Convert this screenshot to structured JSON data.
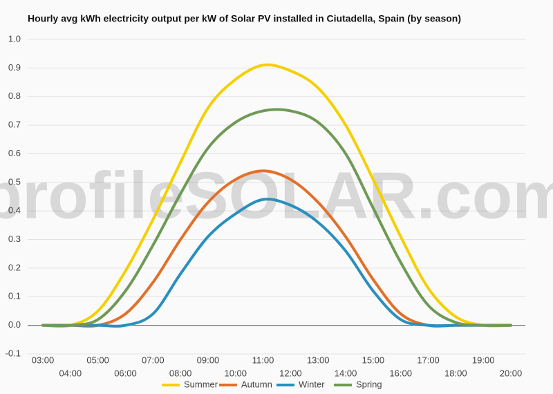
{
  "chart_data": {
    "type": "line",
    "title": "Hourly avg kWh electricity output per kW of Solar PV installed in Ciutadella, Spain (by season)",
    "watermark": "profileSOLAR.com",
    "categories": [
      "03:00",
      "04:00",
      "05:00",
      "06:00",
      "07:00",
      "08:00",
      "09:00",
      "10:00",
      "11:00",
      "12:00",
      "13:00",
      "14:00",
      "15:00",
      "16:00",
      "17:00",
      "18:00",
      "19:00",
      "20:00"
    ],
    "series": [
      {
        "name": "Summer",
        "color": "#f5d000",
        "values": [
          0,
          0,
          0.05,
          0.19,
          0.37,
          0.57,
          0.76,
          0.86,
          0.91,
          0.89,
          0.83,
          0.7,
          0.51,
          0.31,
          0.13,
          0.03,
          0,
          0
        ]
      },
      {
        "name": "Autumn",
        "color": "#e2702a",
        "values": [
          0,
          0,
          0,
          0.04,
          0.15,
          0.3,
          0.43,
          0.51,
          0.54,
          0.51,
          0.43,
          0.31,
          0.16,
          0.04,
          0,
          0,
          0,
          0
        ]
      },
      {
        "name": "Winter",
        "color": "#2a8fbd",
        "values": [
          0,
          0,
          0,
          0,
          0.04,
          0.18,
          0.31,
          0.39,
          0.44,
          0.42,
          0.36,
          0.26,
          0.12,
          0.02,
          0,
          0,
          0,
          0
        ]
      },
      {
        "name": "Spring",
        "color": "#6f9a55",
        "values": [
          0,
          0,
          0.02,
          0.12,
          0.28,
          0.46,
          0.62,
          0.71,
          0.75,
          0.75,
          0.71,
          0.6,
          0.41,
          0.22,
          0.07,
          0.01,
          0,
          0
        ]
      }
    ],
    "ylim": [
      -0.1,
      1.0
    ],
    "yticks": [
      -0.1,
      {
        "value": 0,
        "label": "0.0"
      },
      0.1,
      0.2,
      0.3,
      0.4,
      0.5,
      0.6,
      0.7,
      0.8,
      0.9,
      {
        "value": 1,
        "label": "1.0"
      }
    ],
    "grid": true,
    "legend": "bottom"
  }
}
